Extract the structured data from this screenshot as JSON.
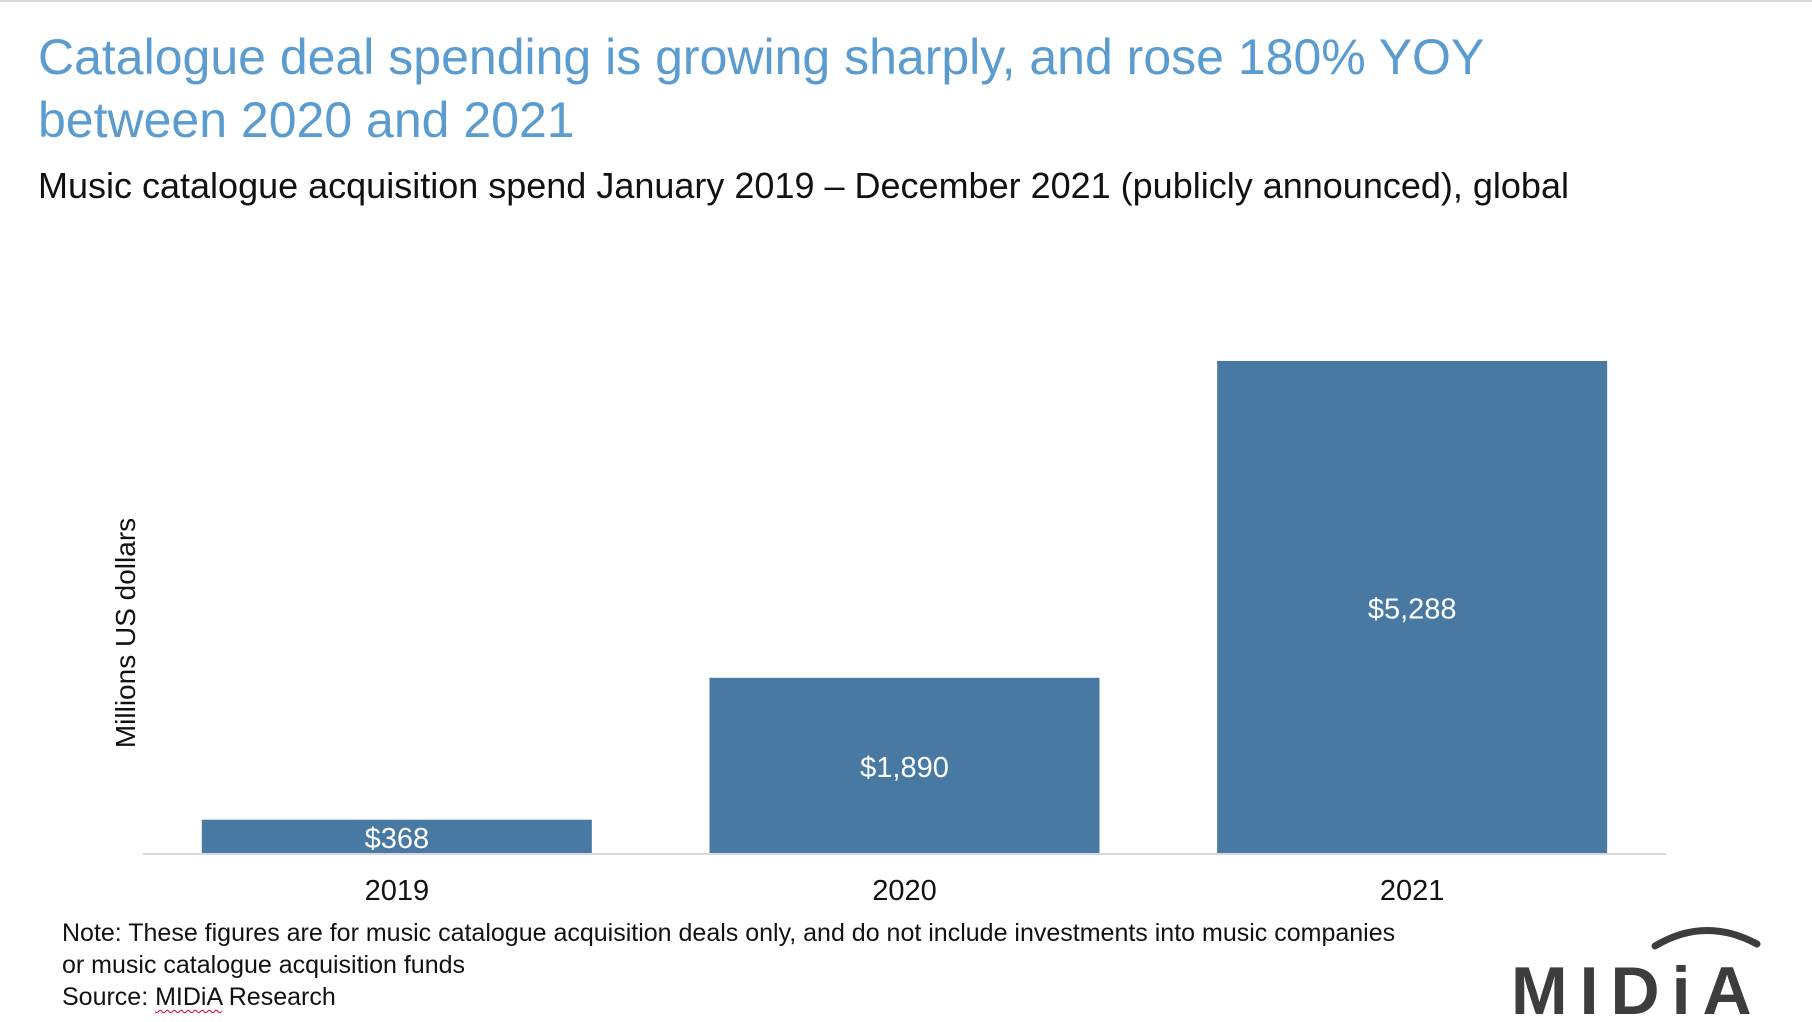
{
  "title": "Catalogue deal spending is growing sharply, and rose 180% YOY between 2020 and 2021",
  "subtitle": "Music catalogue acquisition spend January 2019 – December 2021 (publicly announced), global",
  "note": "Note: These figures are for music catalogue acquisition deals only, and do not include investments into music companies or music catalogue acquisition funds",
  "source": {
    "prefix": "Source: ",
    "brand": "MIDiA",
    "suffix": " Research"
  },
  "logo": {
    "text": "MIDiA",
    "color": "#3d3d3d"
  },
  "colors": {
    "title": "#5a9bd0",
    "bar": "#4779a3",
    "bar_label": "#ffffff",
    "axis": "#d9d9d9"
  },
  "chart_data": {
    "type": "bar",
    "categories": [
      "2019",
      "2020",
      "2021"
    ],
    "values": [
      368,
      1890,
      5288
    ],
    "value_labels": [
      "$368",
      "$1,890",
      "$5,288"
    ],
    "xlabel": "",
    "ylabel": "Millions US dollars",
    "ylim": [
      0,
      5288
    ],
    "grid": false,
    "legend": "none"
  }
}
